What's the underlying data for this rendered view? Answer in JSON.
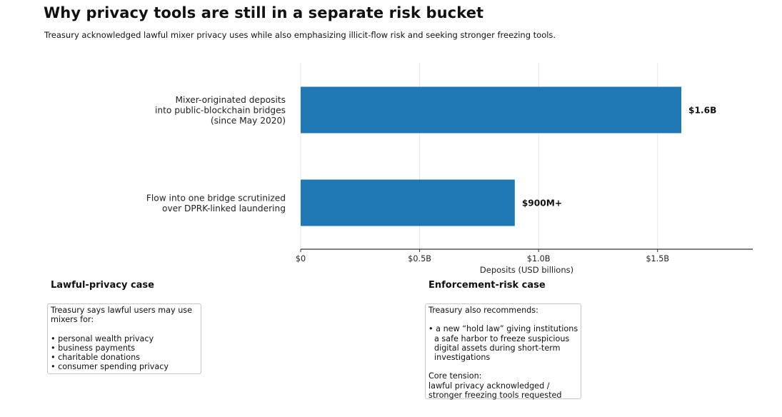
{
  "title": "Why privacy tools are still in a separate risk bucket",
  "subtitle": "Treasury acknowledged lawful mixer privacy uses while also emphasizing illicit-flow risk and seeking stronger freezing tools.",
  "chart_data": {
    "type": "bar",
    "orientation": "horizontal",
    "categories": [
      "Mixer-originated deposits\ninto public-blockchain bridges\n(since May 2020)",
      "Flow into one bridge scrutinized\nover DPRK-linked laundering"
    ],
    "values": [
      1.6,
      0.9
    ],
    "value_labels": [
      "$1.6B",
      "$900M+"
    ],
    "xlabel": "Deposits (USD billions)",
    "ylabel": "",
    "xlim": [
      0,
      1.9
    ],
    "xticks": [
      0,
      0.5,
      1.0,
      1.5
    ],
    "xtick_labels": [
      "$0",
      "$0.5B",
      "$1.0B",
      "$1.5B"
    ],
    "grid": "vertical",
    "bar_color": "#1f77b4"
  },
  "lawful_panel": {
    "heading": "Lawful-privacy case",
    "intro_1": "Treasury says lawful users may use",
    "intro_2": "mixers for:",
    "items": [
      "• personal wealth privacy",
      "• business payments",
      "• charitable donations",
      "• consumer spending privacy"
    ]
  },
  "enforcement_panel": {
    "heading": "Enforcement-risk case",
    "intro": "Treasury also recommends:",
    "bullet_1": "• a new “hold law” giving institutions",
    "bullet_2": "a safe harbor to freeze suspicious",
    "bullet_3": "digital assets during short-term",
    "bullet_4": "investigations",
    "tension_label": "Core tension:",
    "tension_1": "lawful privacy acknowledged /",
    "tension_2": "stronger freezing tools requested"
  }
}
